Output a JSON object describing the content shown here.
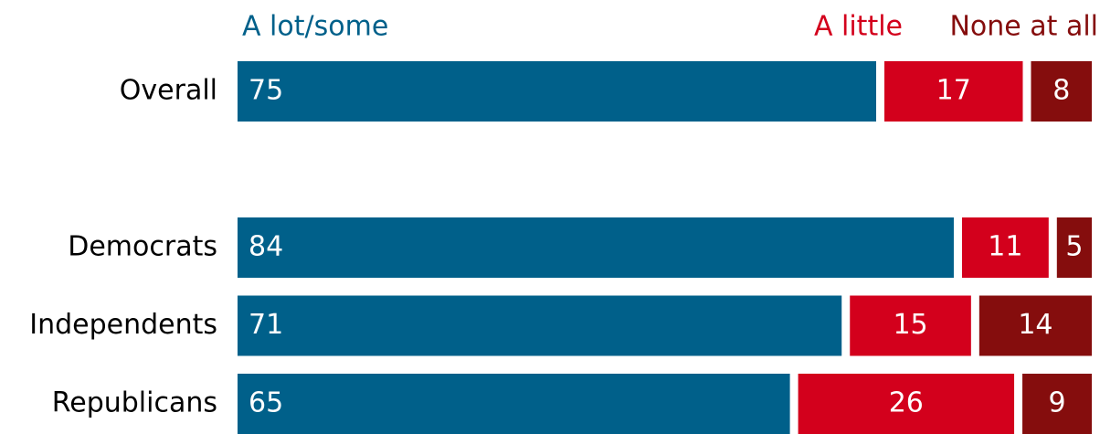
{
  "chart_data": {
    "type": "stacked-bar-horizontal",
    "categories": [
      "Overall",
      null,
      "Democrats",
      "Independents",
      "Republicans"
    ],
    "series": [
      {
        "name": "A lot/some",
        "color": "#00608a",
        "values": [
          75,
          null,
          84,
          71,
          65
        ]
      },
      {
        "name": "A little",
        "color": "#d3001c",
        "values": [
          17,
          null,
          11,
          15,
          26
        ]
      },
      {
        "name": "None at all",
        "color": "#850d0d",
        "values": [
          8,
          null,
          5,
          14,
          9
        ]
      }
    ]
  }
}
